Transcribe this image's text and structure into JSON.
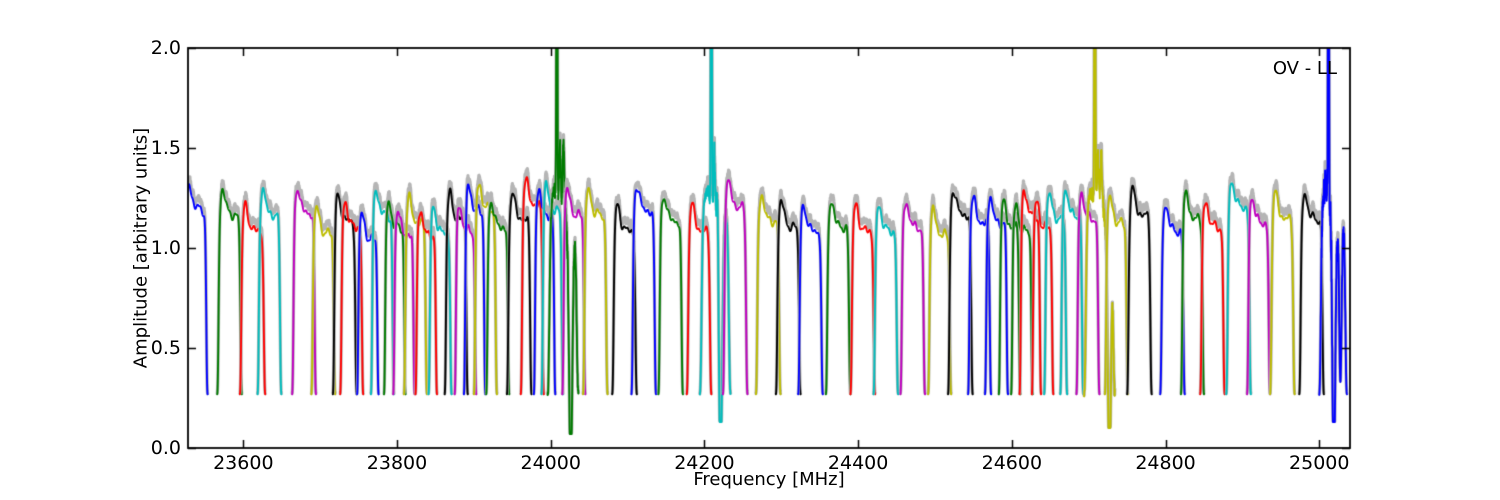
{
  "figure": {
    "background": "#ffffff",
    "annotation": "OV - LL"
  },
  "chart_data": {
    "type": "line",
    "title": "",
    "xlabel": "Frequency [MHz]",
    "ylabel": "Amplitude [arbitrary units]",
    "annotation": "OV - LL",
    "xlim": [
      23528,
      25040
    ],
    "ylim": [
      0.0,
      2.0
    ],
    "xticks": [
      23600,
      23800,
      24000,
      24200,
      24400,
      24600,
      24800,
      25000
    ],
    "yticks": [
      "0.0",
      "0.5",
      "1.0",
      "1.5",
      "2.0"
    ],
    "grid": false,
    "legend": "none",
    "frame_color": "#000000",
    "gray_underlay_color": "#b5b5b5",
    "baseline_level": 0.265,
    "colors": {
      "b": "#0000ff",
      "g": "#007b00",
      "r": "#ff0000",
      "c": "#00bdbd",
      "m": "#bf00bf",
      "y": "#bdbd00",
      "k": "#000000"
    },
    "series": [
      {
        "color": "b",
        "center": 23538,
        "width": 31,
        "peak": 1.33
      },
      {
        "color": "g",
        "center": 23582,
        "width": 32,
        "peak": 1.3
      },
      {
        "color": "r",
        "center": 23612,
        "width": 33,
        "peak": 1.22
      },
      {
        "color": "c",
        "center": 23634,
        "width": 31,
        "peak": 1.3
      },
      {
        "color": "m",
        "center": 23679,
        "width": 31,
        "peak": 1.31
      },
      {
        "color": "y",
        "center": 23704,
        "width": 31,
        "peak": 1.21
      },
      {
        "color": "k",
        "center": 23732,
        "width": 31,
        "peak": 1.27
      },
      {
        "color": "r",
        "center": 23741,
        "width": 30,
        "peak": 1.24
      },
      {
        "color": "b",
        "center": 23762,
        "width": 28,
        "peak": 1.18
      },
      {
        "color": "c",
        "center": 23781,
        "width": 30,
        "peak": 1.3
      },
      {
        "color": "g",
        "center": 23797,
        "width": 28,
        "peak": 1.24
      },
      {
        "color": "m",
        "center": 23809,
        "width": 28,
        "peak": 1.2
      },
      {
        "color": "y",
        "center": 23824,
        "width": 30,
        "peak": 1.26
      },
      {
        "color": "r",
        "center": 23838,
        "width": 28,
        "peak": 1.2
      },
      {
        "color": "c",
        "center": 23856,
        "width": 30,
        "peak": 1.21
      },
      {
        "color": "k",
        "center": 23877,
        "width": 30,
        "peak": 1.28
      },
      {
        "color": "m",
        "center": 23889,
        "width": 28,
        "peak": 1.22
      },
      {
        "color": "b",
        "center": 23901,
        "width": 28,
        "peak": 1.32
      },
      {
        "color": "y",
        "center": 23915,
        "width": 30,
        "peak": 1.33
      },
      {
        "color": "g",
        "center": 23931,
        "width": 30,
        "peak": 1.24
      },
      {
        "color": "k",
        "center": 23959,
        "width": 32,
        "peak": 1.28
      },
      {
        "color": "r",
        "center": 23976,
        "width": 30,
        "peak": 1.35
      },
      {
        "color": "b",
        "center": 23992,
        "width": 28,
        "peak": 1.3
      },
      {
        "color": "c",
        "center": 24002,
        "width": 28,
        "peak": 1.32
      },
      {
        "color": "g",
        "center": 24016,
        "width": 40,
        "peak": 1.28,
        "type": "rfi",
        "spike": 24008,
        "dip": 24026,
        "dip_min": 0.07,
        "p2": 1.55
      },
      {
        "color": "m",
        "center": 24030,
        "width": 30,
        "peak": 1.3
      },
      {
        "color": "y",
        "center": 24058,
        "width": 32,
        "peak": 1.3
      },
      {
        "color": "k",
        "center": 24096,
        "width": 32,
        "peak": 1.22
      },
      {
        "color": "b",
        "center": 24121,
        "width": 32,
        "peak": 1.32
      },
      {
        "color": "g",
        "center": 24156,
        "width": 32,
        "peak": 1.27
      },
      {
        "color": "r",
        "center": 24193,
        "width": 32,
        "peak": 1.22
      },
      {
        "color": "c",
        "center": 24214,
        "width": 40,
        "peak": 1.3,
        "type": "rfi",
        "spike": 24209,
        "dip": 24221,
        "dip_min": 0.13,
        "p2": 1.55
      },
      {
        "color": "m",
        "center": 24240,
        "width": 32,
        "peak": 1.34
      },
      {
        "color": "y",
        "center": 24283,
        "width": 32,
        "peak": 1.27
      },
      {
        "color": "k",
        "center": 24309,
        "width": 32,
        "peak": 1.24
      },
      {
        "color": "b",
        "center": 24338,
        "width": 32,
        "peak": 1.22
      },
      {
        "color": "g",
        "center": 24374,
        "width": 32,
        "peak": 1.24
      },
      {
        "color": "r",
        "center": 24406,
        "width": 32,
        "peak": 1.22
      },
      {
        "color": "c",
        "center": 24436,
        "width": 32,
        "peak": 1.22
      },
      {
        "color": "m",
        "center": 24471,
        "width": 32,
        "peak": 1.24
      },
      {
        "color": "y",
        "center": 24506,
        "width": 30,
        "peak": 1.2
      },
      {
        "color": "k",
        "center": 24533,
        "width": 32,
        "peak": 1.3
      },
      {
        "color": "b",
        "center": 24558,
        "width": 30,
        "peak": 1.26
      },
      {
        "color": "b",
        "center": 24580,
        "width": 30,
        "peak": 1.26
      },
      {
        "color": "g",
        "center": 24597,
        "width": 28,
        "peak": 1.24
      },
      {
        "color": "g",
        "center": 24613,
        "width": 28,
        "peak": 1.22
      },
      {
        "color": "r",
        "center": 24624,
        "width": 28,
        "peak": 1.3
      },
      {
        "color": "r",
        "center": 24640,
        "width": 28,
        "peak": 1.24
      },
      {
        "color": "c",
        "center": 24657,
        "width": 30,
        "peak": 1.28
      },
      {
        "color": "c",
        "center": 24678,
        "width": 30,
        "peak": 1.3
      },
      {
        "color": "m",
        "center": 24699,
        "width": 30,
        "peak": 1.28
      },
      {
        "color": "y",
        "center": 24714,
        "width": 40,
        "peak": 1.3,
        "type": "rfi",
        "spike": 24708,
        "dip": 24727,
        "dip_min": 0.1,
        "p2": 1.52
      },
      {
        "color": "y",
        "center": 24736,
        "width": 30,
        "peak": 1.26
      },
      {
        "color": "k",
        "center": 24766,
        "width": 32,
        "peak": 1.3
      },
      {
        "color": "b",
        "center": 24809,
        "width": 32,
        "peak": 1.22
      },
      {
        "color": "g",
        "center": 24835,
        "width": 30,
        "peak": 1.28
      },
      {
        "color": "r",
        "center": 24861,
        "width": 32,
        "peak": 1.24
      },
      {
        "color": "c",
        "center": 24895,
        "width": 32,
        "peak": 1.34
      },
      {
        "color": "m",
        "center": 24921,
        "width": 30,
        "peak": 1.26
      },
      {
        "color": "y",
        "center": 24952,
        "width": 32,
        "peak": 1.28
      },
      {
        "color": "k",
        "center": 24990,
        "width": 32,
        "peak": 1.28
      },
      {
        "color": "b",
        "center": 25018,
        "width": 36,
        "peak": 1.3,
        "type": "noisy",
        "spike": 25012,
        "dip": 25019,
        "dip_min": 0.13,
        "p2": 1.5
      }
    ]
  }
}
